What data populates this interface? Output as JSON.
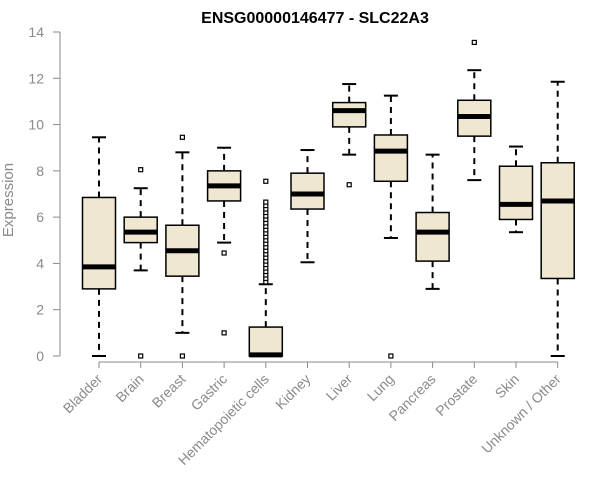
{
  "chart_data": {
    "type": "boxplot",
    "title": "ENSG00000146477 - SLC22A3",
    "ylabel": "Expression",
    "xlabel": "",
    "ylim": [
      0,
      14
    ],
    "yticks": [
      0,
      2,
      4,
      6,
      8,
      10,
      12,
      14
    ],
    "box_fill": "#efe7d0",
    "categories": [
      "Bladder",
      "Brain",
      "Breast",
      "Gastric",
      "Hematopoietic cells",
      "Kidney",
      "Liver",
      "Lung",
      "Pancreas",
      "Prostate",
      "Skin",
      "Unknown / Other"
    ],
    "boxes": [
      {
        "whisker_low": 0.0,
        "q1": 2.9,
        "median": 3.85,
        "q3": 6.85,
        "whisker_high": 9.45,
        "outliers": []
      },
      {
        "whisker_low": 3.7,
        "q1": 4.9,
        "median": 5.35,
        "q3": 6.0,
        "whisker_high": 7.25,
        "outliers": [
          8.05,
          0.0
        ]
      },
      {
        "whisker_low": 1.0,
        "q1": 3.45,
        "median": 4.55,
        "q3": 5.65,
        "whisker_high": 8.8,
        "outliers": [
          9.45,
          0.0
        ]
      },
      {
        "whisker_low": 4.9,
        "q1": 6.7,
        "median": 7.35,
        "q3": 8.0,
        "whisker_high": 9.0,
        "outliers": [
          4.45,
          1.0
        ]
      },
      {
        "whisker_low": 0.0,
        "q1": 0.0,
        "median": 0.05,
        "q3": 1.25,
        "whisker_high": 3.1,
        "outliers": [
          3.2,
          3.35,
          3.5,
          3.65,
          3.8,
          3.95,
          4.1,
          4.25,
          4.4,
          4.55,
          4.7,
          4.85,
          5.0,
          5.15,
          5.3,
          5.45,
          5.6,
          5.75,
          5.9,
          6.05,
          6.2,
          6.35,
          6.5,
          6.65,
          7.55
        ]
      },
      {
        "whisker_low": 4.05,
        "q1": 6.35,
        "median": 7.0,
        "q3": 7.9,
        "whisker_high": 8.9,
        "outliers": []
      },
      {
        "whisker_low": 8.7,
        "q1": 9.9,
        "median": 10.6,
        "q3": 10.95,
        "whisker_high": 11.75,
        "outliers": [
          7.4
        ]
      },
      {
        "whisker_low": 5.1,
        "q1": 7.55,
        "median": 8.85,
        "q3": 9.55,
        "whisker_high": 11.25,
        "outliers": [
          0.0
        ]
      },
      {
        "whisker_low": 2.9,
        "q1": 4.1,
        "median": 5.35,
        "q3": 6.2,
        "whisker_high": 8.7,
        "outliers": []
      },
      {
        "whisker_low": 7.6,
        "q1": 9.5,
        "median": 10.35,
        "q3": 11.05,
        "whisker_high": 12.35,
        "outliers": [
          13.55
        ]
      },
      {
        "whisker_low": 5.35,
        "q1": 5.9,
        "median": 6.55,
        "q3": 8.2,
        "whisker_high": 9.05,
        "outliers": []
      },
      {
        "whisker_low": 0.0,
        "q1": 3.35,
        "median": 6.7,
        "q3": 8.35,
        "whisker_high": 11.85,
        "outliers": []
      }
    ]
  }
}
